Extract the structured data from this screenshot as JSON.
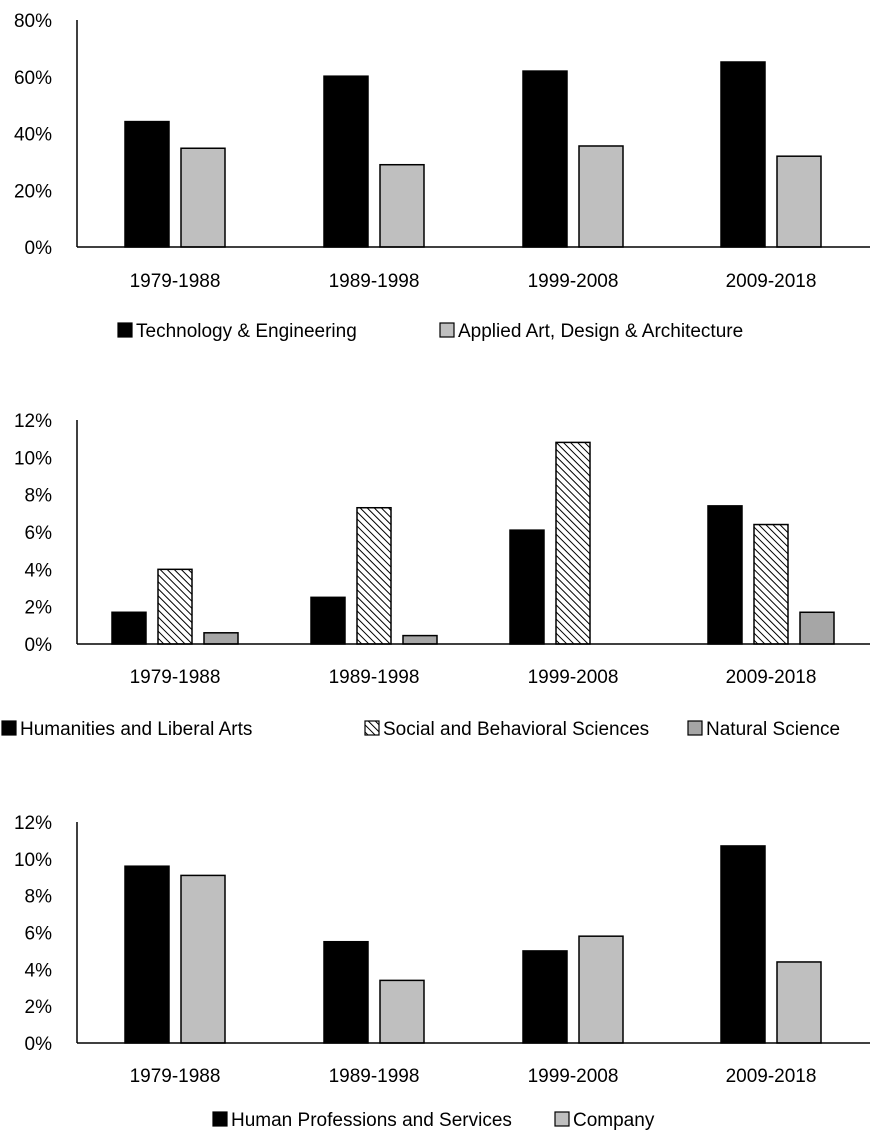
{
  "chart_data": [
    {
      "type": "bar",
      "categories": [
        "1979-1988",
        "1989-1998",
        "1999-2008",
        "2009-2018"
      ],
      "series": [
        {
          "name": "Technology & Engineering",
          "values": [
            44.2,
            60.2,
            62.0,
            65.2
          ],
          "color": "#000000",
          "pattern": "solid"
        },
        {
          "name": "Applied Art, Design & Architecture",
          "values": [
            34.8,
            29.0,
            35.6,
            32.0
          ],
          "color": "#bfbfbf",
          "pattern": "solid"
        }
      ],
      "ylim": [
        0,
        80
      ],
      "yticks": [
        "0%",
        "20%",
        "40%",
        "60%",
        "80%"
      ],
      "ytick_values": [
        0,
        20,
        40,
        60,
        80
      ],
      "legend": "bottom"
    },
    {
      "type": "bar",
      "categories": [
        "1979-1988",
        "1989-1998",
        "1999-2008",
        "2009-2018"
      ],
      "series": [
        {
          "name": "Humanities and Liberal Arts",
          "values": [
            1.7,
            2.5,
            6.1,
            7.4
          ],
          "color": "#000000",
          "pattern": "solid"
        },
        {
          "name": "Social and Behavioral Sciences",
          "values": [
            4.0,
            7.3,
            10.8,
            6.4
          ],
          "color": "#ffffff",
          "pattern": "hatch"
        },
        {
          "name": "Natural Science",
          "values": [
            0.6,
            0.45,
            0,
            1.7
          ],
          "color": "#a6a6a6",
          "pattern": "solid"
        }
      ],
      "ylim": [
        0,
        12
      ],
      "yticks": [
        "0%",
        "2%",
        "4%",
        "6%",
        "8%",
        "10%",
        "12%"
      ],
      "ytick_values": [
        0,
        2,
        4,
        6,
        8,
        10,
        12
      ],
      "legend": "bottom"
    },
    {
      "type": "bar",
      "categories": [
        "1979-1988",
        "1989-1998",
        "1999-2008",
        "2009-2018"
      ],
      "series": [
        {
          "name": "Human Professions and Services",
          "values": [
            9.6,
            5.5,
            5.0,
            10.7
          ],
          "color": "#000000",
          "pattern": "solid"
        },
        {
          "name": "Company",
          "values": [
            9.1,
            3.4,
            5.8,
            4.4
          ],
          "color": "#bfbfbf",
          "pattern": "solid"
        }
      ],
      "ylim": [
        0,
        12
      ],
      "yticks": [
        "0%",
        "2%",
        "4%",
        "6%",
        "8%",
        "10%",
        "12%"
      ],
      "ytick_values": [
        0,
        2,
        4,
        6,
        8,
        10,
        12
      ],
      "legend": "bottom"
    }
  ]
}
